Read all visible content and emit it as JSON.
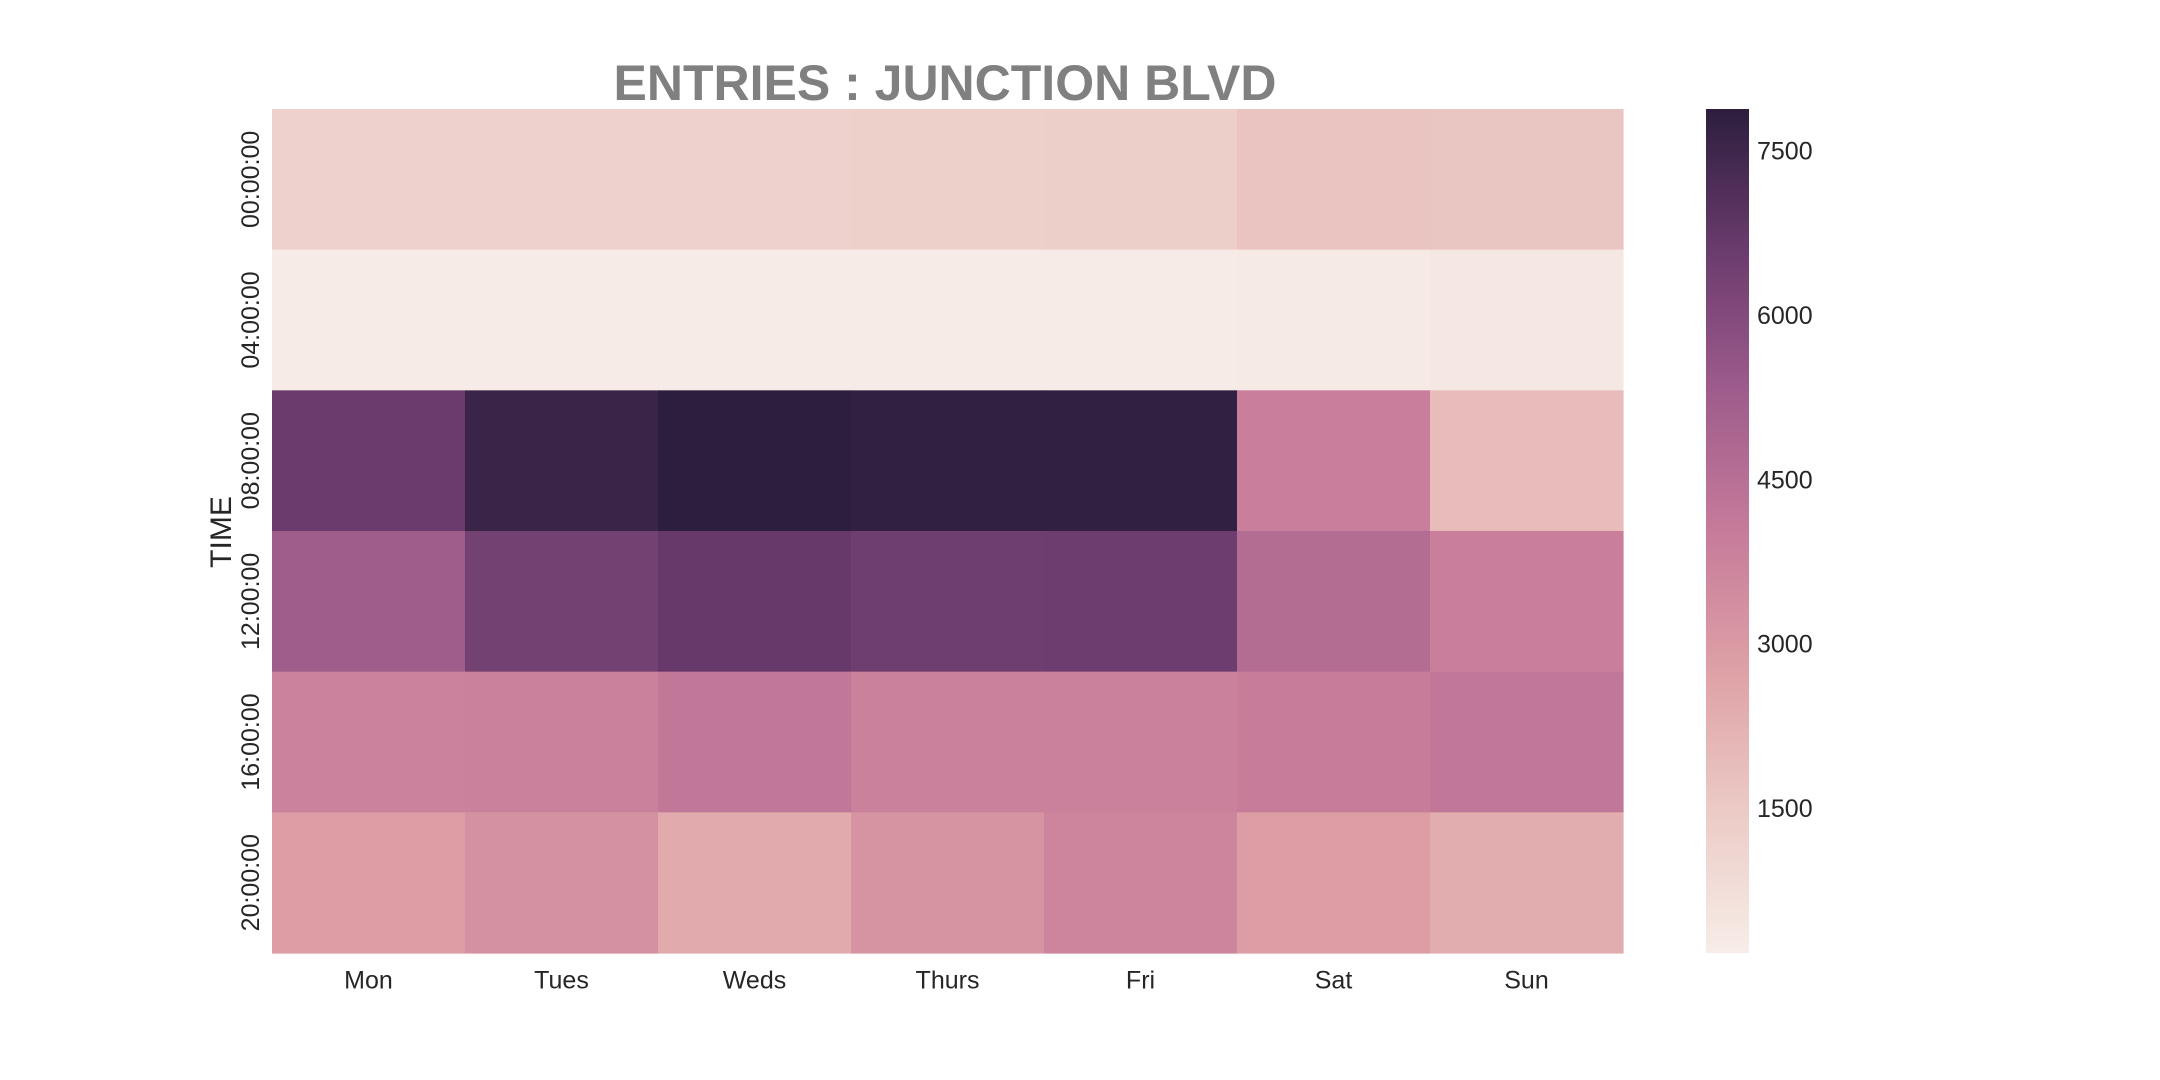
{
  "chart_data": {
    "type": "heatmap",
    "title": "ENTRIES : JUNCTION BLVD",
    "xlabel": "",
    "ylabel": "TIME",
    "x_categories": [
      "Mon",
      "Tues",
      "Weds",
      "Thurs",
      "Fri",
      "Sat",
      "Sun"
    ],
    "y_categories": [
      "00:00:00",
      "04:00:00",
      "08:00:00",
      "12:00:00",
      "16:00:00",
      "20:00:00"
    ],
    "values": [
      [
        1250,
        1270,
        1260,
        1300,
        1320,
        1700,
        1650
      ],
      [
        260,
        270,
        270,
        260,
        280,
        320,
        400
      ],
      [
        6600,
        7600,
        7900,
        7800,
        7800,
        3900,
        1950
      ],
      [
        5300,
        6400,
        6700,
        6500,
        6550,
        4650,
        3900
      ],
      [
        3800,
        3850,
        4200,
        3850,
        3850,
        4000,
        4200
      ],
      [
        2900,
        3300,
        2500,
        3200,
        3700,
        2900,
        2400
      ]
    ],
    "colorbar": {
      "min": 200,
      "max": 7900,
      "ticks": [
        1500,
        3000,
        4500,
        6000,
        7500
      ]
    },
    "colormap_stops": [
      "#f7ede8",
      "#eccbc6",
      "#dea1a6",
      "#c67b9a",
      "#9e5c8c",
      "#6a3b6d",
      "#2c1e3d"
    ],
    "grid": false,
    "legend": "colorbar-right"
  }
}
